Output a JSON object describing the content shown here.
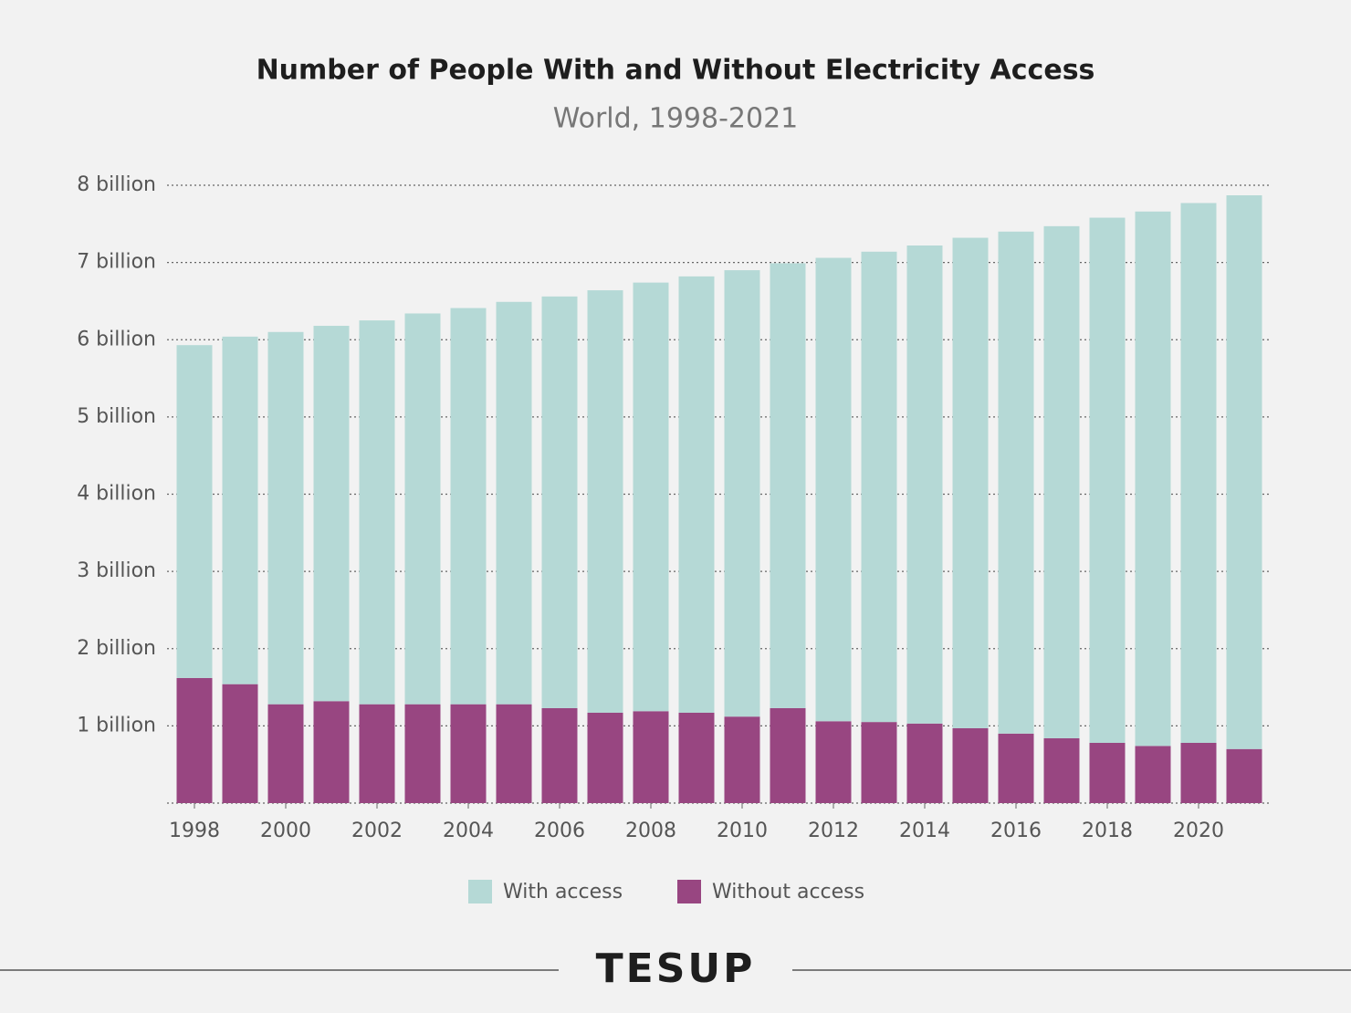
{
  "chart_data": {
    "type": "stacked-bar",
    "title": "Number of People With and Without Electricity Access",
    "subtitle": "World, 1998-2021",
    "categories": [
      "1998",
      null,
      "2000",
      null,
      "2002",
      null,
      "2004",
      null,
      "2006",
      null,
      "2008",
      null,
      "2010",
      null,
      "2012",
      null,
      "2014",
      null,
      "2016",
      null,
      "2018",
      null,
      "2020",
      null
    ],
    "series": [
      {
        "name": "With access",
        "color": "#b5d9d6",
        "values": [
          4.31,
          4.5,
          4.82,
          4.86,
          4.97,
          5.06,
          5.13,
          5.21,
          5.33,
          5.47,
          5.55,
          5.65,
          5.78,
          5.76,
          6.0,
          6.09,
          6.19,
          6.35,
          6.5,
          6.63,
          6.8,
          6.92,
          6.99,
          7.17
        ]
      },
      {
        "name": "Without access",
        "color": "#984681",
        "values": [
          1.62,
          1.54,
          1.28,
          1.32,
          1.28,
          1.28,
          1.28,
          1.28,
          1.23,
          1.17,
          1.19,
          1.17,
          1.12,
          1.23,
          1.06,
          1.05,
          1.03,
          0.97,
          0.9,
          0.84,
          0.78,
          0.74,
          0.78,
          0.7
        ]
      }
    ],
    "ylim": [
      0,
      8
    ],
    "yticks": [
      {
        "value": 1,
        "label": "1 billion"
      },
      {
        "value": 2,
        "label": "2 billion"
      },
      {
        "value": 3,
        "label": "3 billion"
      },
      {
        "value": 4,
        "label": "4 billion"
      },
      {
        "value": 5,
        "label": "5 billion"
      },
      {
        "value": 6,
        "label": "6 billion"
      },
      {
        "value": 7,
        "label": "7 billion"
      },
      {
        "value": 8,
        "label": "8 billion"
      }
    ],
    "grid": true,
    "legend": "bottom"
  },
  "brand": "TESUP"
}
